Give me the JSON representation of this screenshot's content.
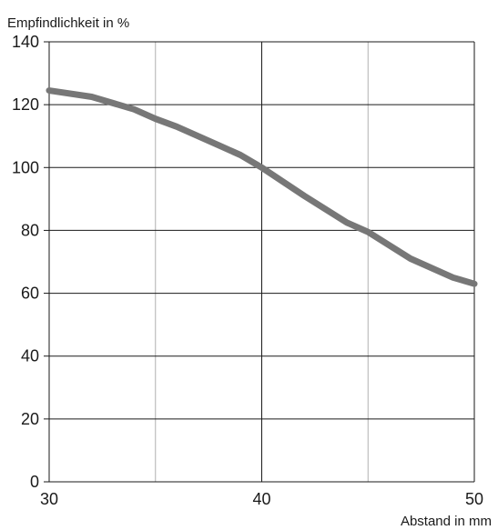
{
  "chart_data": {
    "type": "line",
    "title": "",
    "ylabel": "Empfindlichkeit in %",
    "xlabel": "Abstand in mm",
    "xlim": [
      30,
      50
    ],
    "ylim": [
      0,
      140
    ],
    "x_ticks": [
      30,
      40,
      50
    ],
    "x_minor_gridlines": [
      35,
      45
    ],
    "y_ticks": [
      0,
      20,
      40,
      60,
      80,
      100,
      120,
      140
    ],
    "grid": true,
    "legend": "none",
    "series": [
      {
        "color": "#777777",
        "x": [
          30,
          32,
          34,
          35,
          36,
          38,
          39,
          40,
          42,
          44,
          45,
          47,
          49,
          50
        ],
        "y": [
          124.5,
          122.5,
          118.5,
          115.5,
          113,
          107,
          104,
          100,
          91,
          82.5,
          79.5,
          71,
          65,
          63
        ]
      }
    ]
  }
}
